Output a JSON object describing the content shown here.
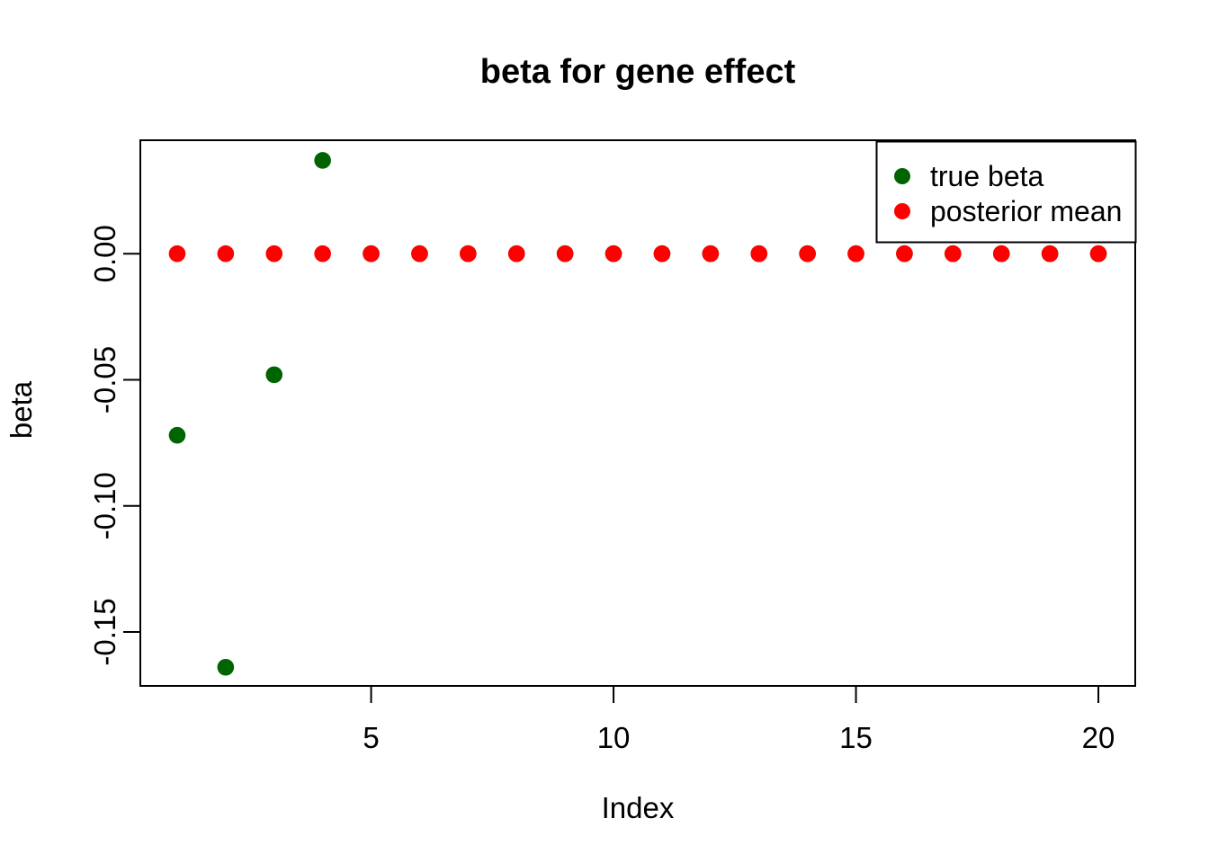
{
  "chart_data": {
    "type": "scatter",
    "title": "beta for gene effect",
    "xlabel": "Index",
    "ylabel": "beta",
    "grid": false,
    "point_style": "filled-circle",
    "x": [
      1,
      2,
      3,
      4,
      5,
      6,
      7,
      8,
      9,
      10,
      11,
      12,
      13,
      14,
      15,
      16,
      17,
      18,
      19,
      20
    ],
    "series": [
      {
        "name": "true beta",
        "color": "#006400",
        "values": [
          -0.072,
          -0.164,
          -0.048,
          0.037,
          0,
          0,
          0,
          0,
          0,
          0,
          0,
          0,
          0,
          0,
          0,
          0,
          0,
          0,
          0,
          0
        ]
      },
      {
        "name": "posterior mean",
        "color": "#FF0000",
        "values": [
          0,
          0,
          0,
          0,
          0,
          0,
          0,
          0,
          0,
          0,
          0,
          0,
          0,
          0,
          0,
          0,
          0,
          0,
          0,
          0
        ]
      }
    ],
    "legend": {
      "position": "top-right",
      "items": [
        {
          "label": "true beta",
          "color": "#006400"
        },
        {
          "label": "posterior mean",
          "color": "#FF0000"
        }
      ]
    },
    "x_ticks": {
      "values": [
        5,
        10,
        15,
        20
      ],
      "labels": [
        "5",
        "10",
        "15",
        "20"
      ]
    },
    "y_ticks": {
      "values": [
        0,
        -0.05,
        -0.1,
        -0.15
      ],
      "labels": [
        "0.00",
        "-0.05",
        "-0.10",
        "-0.15"
      ]
    },
    "xlim": [
      0.24,
      20.76
    ],
    "ylim": [
      -0.1714,
      0.045
    ],
    "colors": {
      "foreground": "#000000",
      "background": "#ffffff"
    }
  }
}
